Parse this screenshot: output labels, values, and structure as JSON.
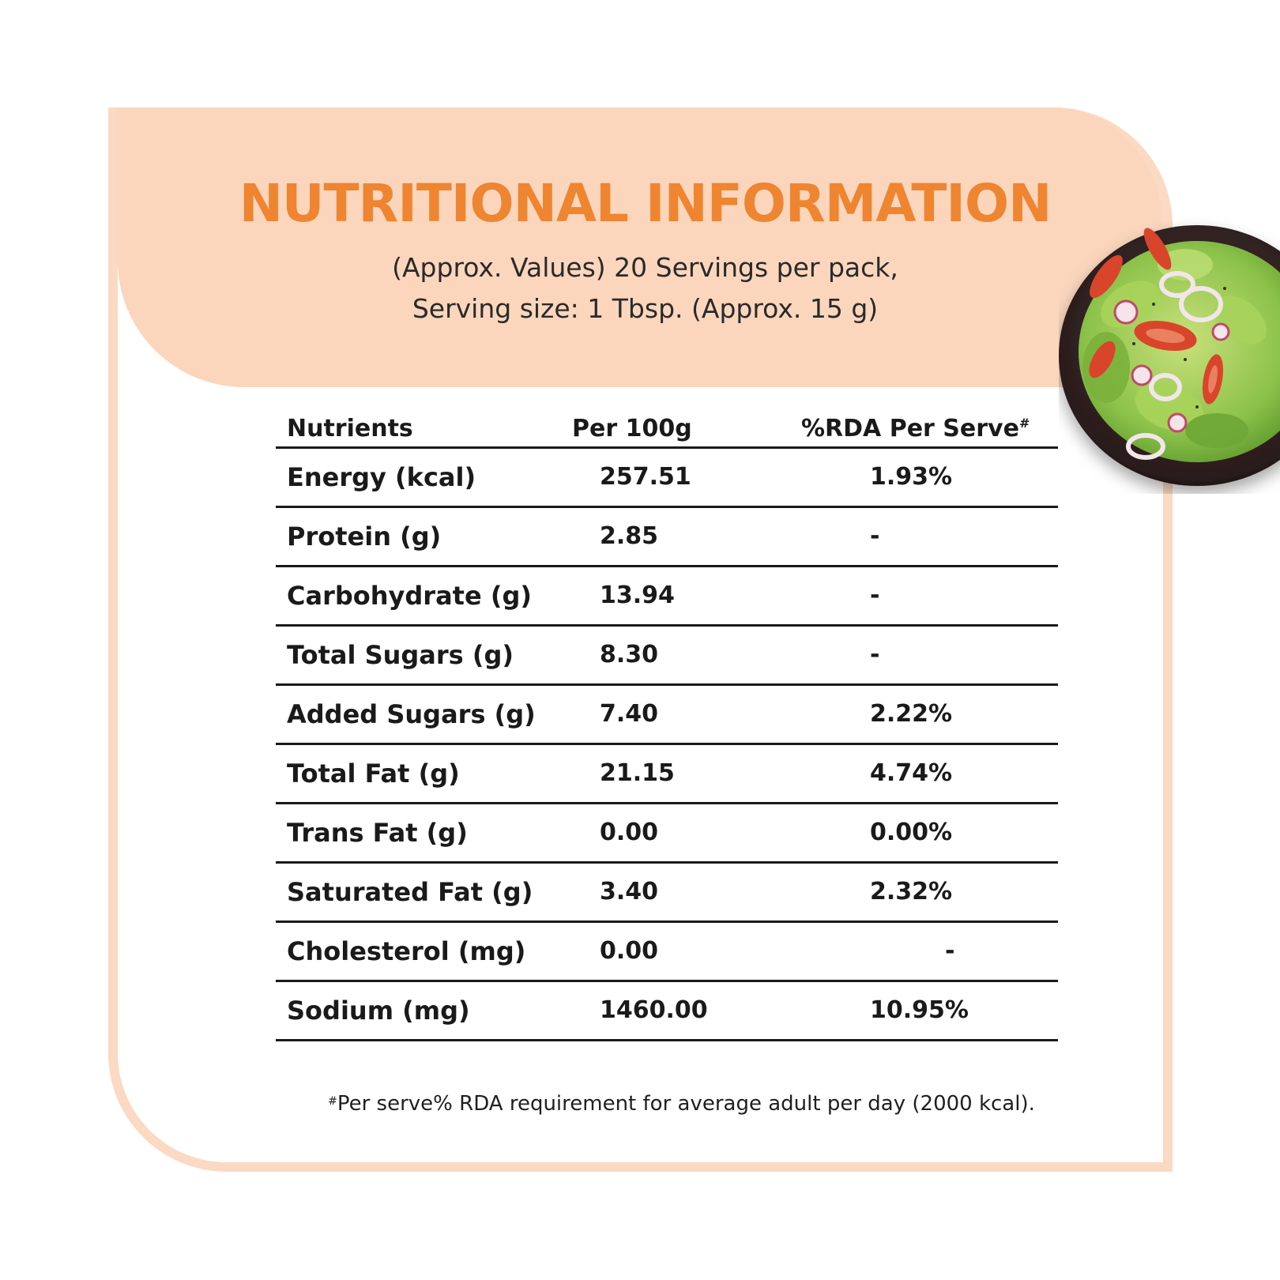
{
  "title": "NUTRITIONAL INFORMATION",
  "subtitle_line1": "(Approx. Values) 20 Servings per pack,",
  "subtitle_line2": "Serving size: 1 Tbsp. (Approx. 15 g)",
  "table": {
    "headers": {
      "nutrients": "Nutrients",
      "per100g": "Per 100g",
      "rda": "%RDA Per Serve",
      "rda_mark": "#"
    },
    "rows": [
      {
        "name": "Energy (kcal)",
        "per100g": "257.51",
        "rda": "1.93%"
      },
      {
        "name": "Protein (g)",
        "per100g": "2.85",
        "rda": "-"
      },
      {
        "name": "Carbohydrate (g)",
        "per100g": "13.94",
        "rda": "-"
      },
      {
        "name": "Total Sugars (g)",
        "per100g": "8.30",
        "rda": "-"
      },
      {
        "name": "Added Sugars (g)",
        "per100g": "7.40",
        "rda": "2.22%"
      },
      {
        "name": "Total Fat (g)",
        "per100g": "21.15",
        "rda": "4.74%"
      },
      {
        "name": "Trans Fat (g)",
        "per100g": "0.00",
        "rda": "0.00%"
      },
      {
        "name": "Saturated Fat (g)",
        "per100g": "3.40",
        "rda": "2.32%"
      },
      {
        "name": "Cholesterol (mg)",
        "per100g": "0.00",
        "rda": "-"
      },
      {
        "name": "Sodium (mg)",
        "per100g": "1460.00",
        "rda": "10.95%"
      }
    ]
  },
  "footnote": {
    "mark": "#",
    "text": "Per serve% RDA requirement for average adult per day (2000 kcal)."
  },
  "image": {
    "subject": "salad-bowl",
    "colors": {
      "bowl": "#2b1d1d",
      "lettuce": "#8cc24a",
      "tomato": "#d9452b",
      "radish": "#f2e6ea"
    }
  },
  "colors": {
    "accent": "#ef8530",
    "banner": "#fbd6bd",
    "border": "#fbd9c2",
    "text": "#1a1a1a"
  }
}
